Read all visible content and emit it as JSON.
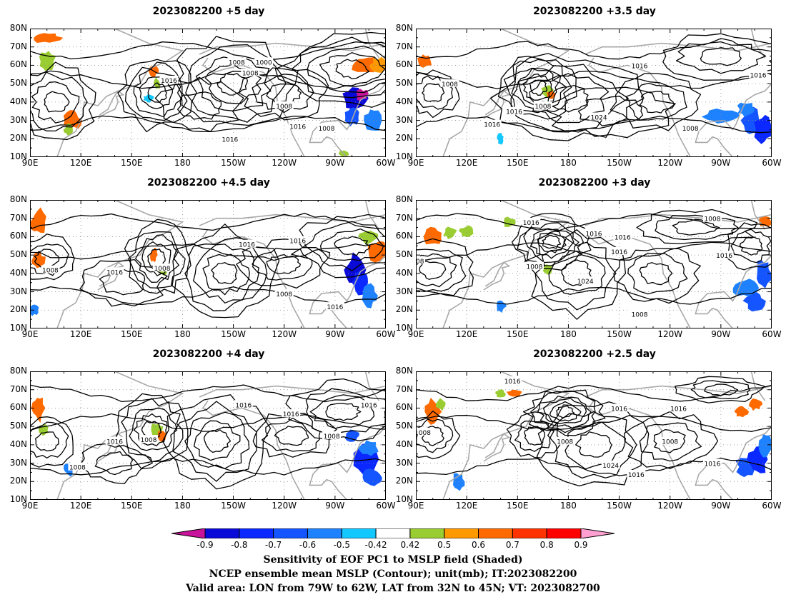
{
  "chart_data": {
    "type": "heatmap",
    "panels": [
      {
        "title": "2023082200 +5 day",
        "contour_labels": [
          "1008",
          "1000",
          "1008",
          "1016",
          "1016",
          "1008",
          "1016",
          "1008"
        ]
      },
      {
        "title": "2023082200 +3.5 day",
        "contour_labels": [
          "1016",
          "1016",
          "1008",
          "1008",
          "1016",
          "1024",
          "1008",
          "1016"
        ]
      },
      {
        "title": "2023082200 +4.5 day",
        "contour_labels": [
          "1016",
          "1008",
          "1016",
          "1008",
          "1008",
          "1016",
          "1016"
        ]
      },
      {
        "title": "2023082200 +3 day",
        "contour_labels": [
          "1008",
          "1016",
          "1016",
          "1016",
          "1016",
          "1008",
          "1024",
          "1008",
          "1008",
          "1016"
        ]
      },
      {
        "title": "2023082200 +4 day",
        "contour_labels": [
          "1016",
          "1008",
          "1016",
          "1008",
          "1016",
          "1008",
          "1016"
        ]
      },
      {
        "title": "2023082200 +2.5 day",
        "contour_labels": [
          "1016",
          "1016",
          "1008",
          "1008",
          "1024",
          "1016",
          "1016",
          "1008",
          "1016"
        ]
      }
    ],
    "y_ticks": [
      "80N",
      "70N",
      "60N",
      "50N",
      "40N",
      "30N",
      "20N",
      "10N"
    ],
    "x_ticks": [
      "90E",
      "120E",
      "150E",
      "180",
      "150W",
      "120W",
      "90W",
      "60W"
    ],
    "lon_range": [
      90,
      300
    ],
    "lat_range": [
      10,
      80
    ],
    "colorbar": {
      "ticks": [
        "-0.9",
        "-0.8",
        "-0.7",
        "-0.6",
        "-0.5",
        "-0.42",
        "0.42",
        "0.5",
        "0.6",
        "0.7",
        "0.8",
        "0.9"
      ],
      "colors": [
        "#c8149a",
        "#0a0ad8",
        "#0a28ff",
        "#1455ff",
        "#1e82ff",
        "#12c8ff",
        "#ffffff",
        "#9acd32",
        "#ff9900",
        "#ff6a00",
        "#ff3200",
        "#ff0000",
        "#ffa0d0"
      ]
    },
    "captions": [
      "Sensitivity of EOF PC1 to MSLP field (Shaded)",
      "NCEP ensemble mean MSLP (Contour); unit(mb); IT:2023082200",
      "Valid area: LON from 79W to 62W, LAT from 32N to 45N; VT: 2023082700"
    ]
  }
}
